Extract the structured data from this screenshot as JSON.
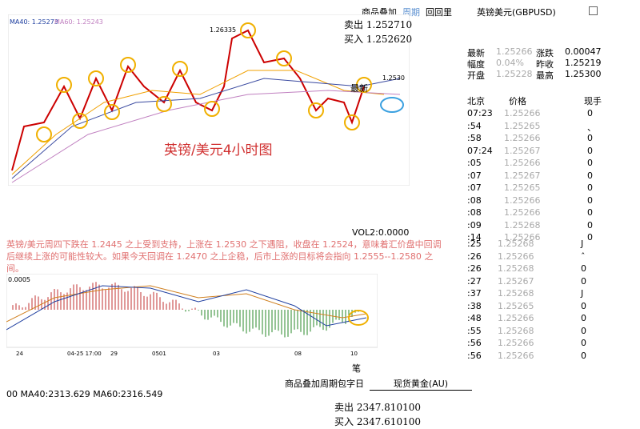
{
  "toolbar": {
    "overlay": "商品叠加",
    "period": "周期",
    "review": "回回里",
    "symbol": "英镑美元(GBPUSD)"
  },
  "main_chart": {
    "ma": "MA40: 1.25273",
    "ma60": "MA60: 1.25243",
    "high": "1.26335",
    "last": "1.2530",
    "latest": "最新",
    "caption": "英镑/美元4小时图"
  },
  "sell": "卖出 1.252710",
  "buy": "买入 1.252620",
  "quote": [
    [
      "最新",
      "1.25266",
      "涨跌",
      "0.00047"
    ],
    [
      "幅度",
      "0.04%",
      "昨收",
      "1.25219"
    ],
    [
      "开盘",
      "1.25228",
      "最高",
      "1.25300"
    ]
  ],
  "ticks": {
    "header": [
      "北京",
      "价格",
      "现手"
    ],
    "rows": [
      [
        "07:23",
        "1.25266",
        "0"
      ],
      [
        ":54",
        "1.25265",
        "、"
      ],
      [
        ":58",
        "1.25266",
        "0"
      ],
      [
        "07:24",
        "1.25267",
        "0"
      ],
      [
        ":05",
        "1.25266",
        "0"
      ],
      [
        ":07",
        "1.25267",
        "0"
      ],
      [
        ":07",
        "1.25265",
        "0"
      ],
      [
        ":08",
        "1.25266",
        "0"
      ],
      [
        ":08",
        "1.25266",
        "0"
      ],
      [
        ":09",
        "1.25268",
        "0"
      ],
      [
        ":14",
        "1.25266",
        "0"
      ]
    ],
    "rows2": [
      [
        ":25",
        "1.25268",
        "J"
      ],
      [
        ":26",
        "1.25266",
        "ˆ"
      ],
      [
        ":26",
        "1.25268",
        "0"
      ],
      [
        ":27",
        "1.25267",
        "0"
      ],
      [
        ":37",
        "1.25268",
        "J"
      ],
      [
        ":38",
        "1.25265",
        "0"
      ],
      [
        ":48",
        "1.25266",
        "0"
      ],
      [
        ":55",
        "1.25268",
        "0"
      ],
      [
        ":56",
        "1.25266",
        "0"
      ],
      [
        ":56",
        "1.25266",
        "0"
      ]
    ]
  },
  "vol": "VOL2:0.0000",
  "analysis": "英镑/美元周四下跌在 1.2445 之上受到支持，上涨在 1.2530 之下遇阻，收盘在 1.2524，意味着汇价盘中回调后继续上涨的可能性较大。如果今天回调在 1.2470 之上企稳，后市上涨的目标将会指向 1.2555--1.2580 之间。",
  "macd": {
    "level": "0.0005",
    "dates": [
      "24",
      "04-25 17:00",
      "29",
      "0501",
      "03",
      "08",
      "10"
    ]
  },
  "bi": "笔",
  "gold": {
    "label": "商品叠加周期包字日",
    "symbol": "现货黄金(AU)",
    "ma": "00 MA40:2313.629 MA60:2316.549",
    "sell": "卖出 2347.810100",
    "buy": "买入 2347.610100"
  }
}
